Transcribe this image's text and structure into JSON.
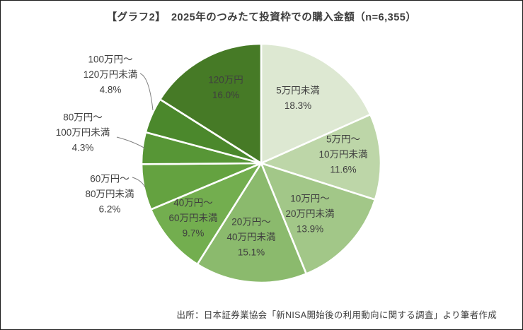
{
  "figure": {
    "title": "【グラフ2】　2025年のつみたて投資枠での購入金額（n=6,355）",
    "source": "出所：日本証券業協会「新NISA開始後の利用動向に関する調査」より筆者作成"
  },
  "chart_data": {
    "type": "pie",
    "title": "【グラフ2】　2025年のつみたて投資枠での購入金額（n=6,355）",
    "sample_size": "n=6,355",
    "unit": "%",
    "direction": "clockwise",
    "start_angle_deg": 0,
    "legend": "none",
    "categories": [
      "5万円未満",
      "5万円～10万円未満",
      "10万円～20万円未満",
      "20万円～40万円未満",
      "40万円～60万円未満",
      "60万円～80万円未満",
      "80万円～100万円未満",
      "100万円～120万円未満",
      "120万円"
    ],
    "wrapped_labels": [
      [
        "5万円未満"
      ],
      [
        "5万円～",
        "10万円未満"
      ],
      [
        "10万円～",
        "20万円未満"
      ],
      [
        "20万円～",
        "40万円未満"
      ],
      [
        "40万円～",
        "60万円未満"
      ],
      [
        "60万円～",
        "80万円未満"
      ],
      [
        "80万円～",
        "100万円未満"
      ],
      [
        "100万円～",
        "120万円未満"
      ],
      [
        "120万円"
      ]
    ],
    "values": [
      18.3,
      11.6,
      13.9,
      15.1,
      9.7,
      6.2,
      4.3,
      4.8,
      16.0
    ],
    "percent_labels": [
      "18.3%",
      "11.6%",
      "13.9%",
      "15.1%",
      "9.7%",
      "6.2%",
      "4.3%",
      "4.8%",
      "16.0%"
    ],
    "colors": [
      "#dde8d2",
      "#bdd6a8",
      "#a2c788",
      "#8bba6d",
      "#73ae4f",
      "#64a240",
      "#579636",
      "#4b882c",
      "#467a26"
    ],
    "label_placement": [
      "inside",
      "inside",
      "inside",
      "inside",
      "inside",
      "outside",
      "outside",
      "outside",
      "inside"
    ],
    "label_text_color": "#3f3f3f",
    "slice_border_color": "#ffffff",
    "leader_line_color": "#7f7f7f"
  }
}
